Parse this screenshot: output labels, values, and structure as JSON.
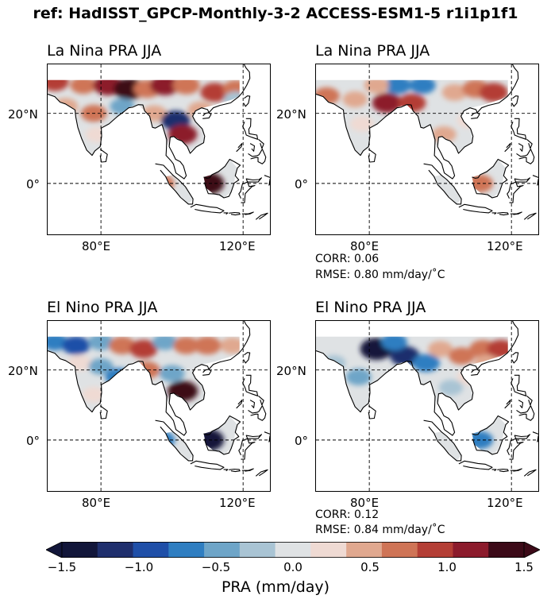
{
  "suptitle": "ref: HadISST_GPCP-Monthly-3-2 ACCESS-ESM1-5 r1i1p1f1",
  "chart_data": [
    {
      "type": "heatmap",
      "title": "La Nina PRA JJA",
      "x_ticks": [
        "80°E",
        "120°E"
      ],
      "y_ticks": [
        "20°N",
        "0°"
      ],
      "pattern": [
        {
          "lon": 67,
          "lat": 29,
          "v": 0.9
        },
        {
          "lon": 75,
          "lat": 28,
          "v": 0.6
        },
        {
          "lon": 82,
          "lat": 28,
          "v": 1.2
        },
        {
          "lon": 88,
          "lat": 27,
          "v": 1.5
        },
        {
          "lon": 93,
          "lat": 27,
          "v": 0.8
        },
        {
          "lon": 98,
          "lat": 28,
          "v": 1.2
        },
        {
          "lon": 104,
          "lat": 28,
          "v": 0.8
        },
        {
          "lon": 112,
          "lat": 26,
          "v": 1.0
        },
        {
          "lon": 118,
          "lat": 27,
          "v": 0.7
        },
        {
          "lon": 70,
          "lat": 22,
          "v": 0.5
        },
        {
          "lon": 78,
          "lat": 20,
          "v": 0.6
        },
        {
          "lon": 86,
          "lat": 22,
          "v": -0.4
        },
        {
          "lon": 95,
          "lat": 20,
          "v": 0.4
        },
        {
          "lon": 101,
          "lat": 18,
          "v": -1.1
        },
        {
          "lon": 103,
          "lat": 14,
          "v": 1.1
        },
        {
          "lon": 108,
          "lat": 21,
          "v": 0.5
        },
        {
          "lon": 79,
          "lat": 14,
          "v": 0.3
        },
        {
          "lon": 110,
          "lat": 0,
          "v": 1.7
        },
        {
          "lon": 97,
          "lat": 0,
          "v": 0.6
        },
        {
          "lon": 118,
          "lat": 24,
          "v": -0.3
        }
      ]
    },
    {
      "type": "heatmap",
      "title": "La Nina PRA JJA",
      "x_ticks": [
        "80°E",
        "120°E"
      ],
      "y_ticks": [
        "20°N",
        "0°"
      ],
      "corr": "CORR: 0.06",
      "rmse": "RMSE: 0.80 mm/day/$^\\circ$C",
      "pattern": [
        {
          "lon": 68,
          "lat": 25,
          "v": 0.6
        },
        {
          "lon": 76,
          "lat": 24,
          "v": 0.4
        },
        {
          "lon": 85,
          "lat": 23,
          "v": 1.2
        },
        {
          "lon": 92,
          "lat": 23,
          "v": 0.9
        },
        {
          "lon": 88,
          "lat": 28,
          "v": -0.7
        },
        {
          "lon": 95,
          "lat": 28,
          "v": -0.6
        },
        {
          "lon": 104,
          "lat": 26,
          "v": 0.5
        },
        {
          "lon": 110,
          "lat": 27,
          "v": 0.8
        },
        {
          "lon": 115,
          "lat": 26,
          "v": 1.0
        },
        {
          "lon": 78,
          "lat": 17,
          "v": 0.3
        },
        {
          "lon": 101,
          "lat": 14,
          "v": 0.4
        },
        {
          "lon": 108,
          "lat": 18,
          "v": 0.3
        },
        {
          "lon": 111,
          "lat": 0,
          "v": 0.8
        },
        {
          "lon": 82,
          "lat": 28,
          "v": 0.4
        }
      ]
    },
    {
      "type": "heatmap",
      "title": "El Nino PRA JJA",
      "x_ticks": [
        "80°E",
        "120°E"
      ],
      "y_ticks": [
        "20°N",
        "0°"
      ],
      "pattern": [
        {
          "lon": 67,
          "lat": 28,
          "v": -0.6
        },
        {
          "lon": 73,
          "lat": 27,
          "v": -0.9
        },
        {
          "lon": 80,
          "lat": 28,
          "v": -0.5
        },
        {
          "lon": 86,
          "lat": 27,
          "v": 0.7
        },
        {
          "lon": 92,
          "lat": 26,
          "v": 0.9
        },
        {
          "lon": 98,
          "lat": 28,
          "v": -0.4
        },
        {
          "lon": 104,
          "lat": 27,
          "v": 0.6
        },
        {
          "lon": 110,
          "lat": 27,
          "v": 0.8
        },
        {
          "lon": 117,
          "lat": 27,
          "v": 0.4
        },
        {
          "lon": 74,
          "lat": 22,
          "v": 0.3
        },
        {
          "lon": 80,
          "lat": 21,
          "v": -0.4
        },
        {
          "lon": 85,
          "lat": 18,
          "v": -0.8
        },
        {
          "lon": 93,
          "lat": 20,
          "v": 0.6
        },
        {
          "lon": 100,
          "lat": 19,
          "v": -0.5
        },
        {
          "lon": 103,
          "lat": 14,
          "v": 1.3
        },
        {
          "lon": 110,
          "lat": 0,
          "v": -1.7
        },
        {
          "lon": 97,
          "lat": 0,
          "v": -0.8
        },
        {
          "lon": 78,
          "lat": 13,
          "v": 0.2
        }
      ]
    },
    {
      "type": "heatmap",
      "title": "El Nino PRA JJA",
      "x_ticks": [
        "80°E",
        "120°E"
      ],
      "y_ticks": [
        "20°N",
        "0°"
      ],
      "corr": "CORR: 0.12",
      "rmse": "RMSE: 0.84 mm/day/$^\\circ$C",
      "pattern": [
        {
          "lon": 82,
          "lat": 26,
          "v": -1.6
        },
        {
          "lon": 90,
          "lat": 24,
          "v": -1.2
        },
        {
          "lon": 96,
          "lat": 22,
          "v": -0.8
        },
        {
          "lon": 70,
          "lat": 22,
          "v": -0.3
        },
        {
          "lon": 77,
          "lat": 18,
          "v": -0.5
        },
        {
          "lon": 87,
          "lat": 28,
          "v": -0.6
        },
        {
          "lon": 100,
          "lat": 26,
          "v": 0.4
        },
        {
          "lon": 106,
          "lat": 24,
          "v": 0.6
        },
        {
          "lon": 112,
          "lat": 26,
          "v": 0.8
        },
        {
          "lon": 117,
          "lat": 26,
          "v": 0.9
        },
        {
          "lon": 103,
          "lat": 15,
          "v": -0.3
        },
        {
          "lon": 108,
          "lat": 18,
          "v": 0.3
        },
        {
          "lon": 111,
          "lat": 0,
          "v": -0.8
        },
        {
          "lon": 113,
          "lat": 22,
          "v": 0.5
        }
      ]
    }
  ],
  "colorbar": {
    "ticks": [
      "−1.5",
      "−1.0",
      "−0.5",
      "0.0",
      "0.5",
      "1.0",
      "1.5"
    ],
    "tick_values": [
      -1.5,
      -1.0,
      -0.5,
      0.0,
      0.5,
      1.0,
      1.5
    ],
    "label": "PRA (mm/day)",
    "range": [
      -1.5,
      1.5
    ],
    "colors": [
      "#12163a",
      "#1f2f6d",
      "#1f4fa8",
      "#2f7ec1",
      "#6ea5c8",
      "#a9c4d4",
      "#dfe2e4",
      "#efdad3",
      "#e0a88f",
      "#cf7456",
      "#b43e35",
      "#8c1b2c",
      "#3c0a18"
    ]
  }
}
